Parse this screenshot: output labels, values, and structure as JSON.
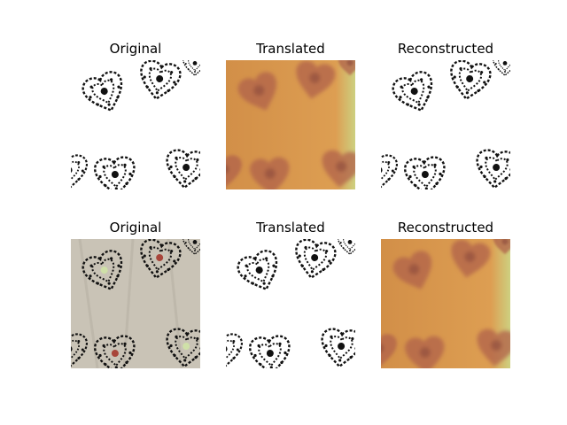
{
  "figure": {
    "rows": [
      {
        "panels": [
          {
            "title": "Original",
            "style": "bw"
          },
          {
            "title": "Translated",
            "style": "orange"
          },
          {
            "title": "Reconstructed",
            "style": "bw"
          }
        ]
      },
      {
        "panels": [
          {
            "title": "Original",
            "style": "fabric"
          },
          {
            "title": "Translated",
            "style": "bw-color"
          },
          {
            "title": "Reconstructed",
            "style": "orange"
          }
        ]
      }
    ]
  },
  "colors": {
    "orange_bg": "#d8964a",
    "fabric_bg": "#c9c3b6",
    "ink": "#111111",
    "motif_red": "#a8453a"
  }
}
